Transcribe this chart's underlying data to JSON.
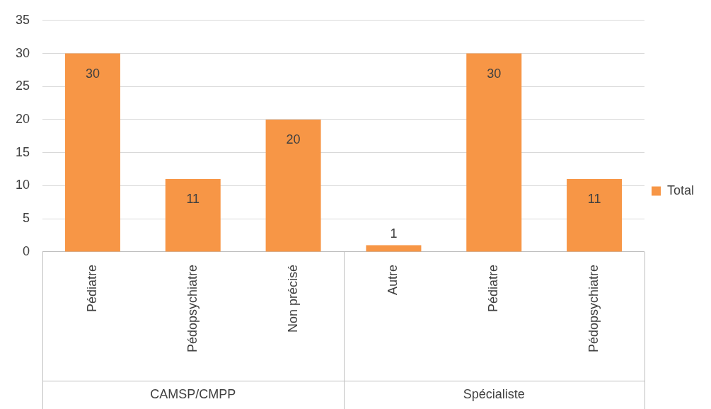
{
  "chart_data": {
    "type": "bar",
    "categories": [
      "Pédiatre",
      "Pédopsychiatre",
      "Non précisé",
      "Autre",
      "Pédiatre",
      "Pédopsychiatre"
    ],
    "series": [
      {
        "name": "Total",
        "color": "#f79646",
        "values": [
          30,
          11,
          20,
          1,
          30,
          11
        ]
      }
    ],
    "annotations": [
      "CAMSP/CMPP",
      "Spécialiste"
    ],
    "ylim": [
      0,
      35
    ],
    "yticks": [
      0,
      5,
      10,
      15,
      20,
      25,
      30,
      35
    ],
    "grid": "y",
    "legend": "right",
    "data_labels": true
  }
}
